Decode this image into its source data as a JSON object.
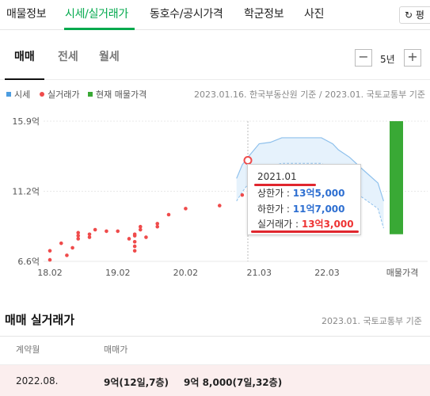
{
  "topnav": {
    "tabs": [
      "매물정보",
      "시세/실거래가",
      "동호수/공시가격",
      "학군정보",
      "사진"
    ],
    "active_index": 1,
    "refresh_label": "평"
  },
  "subtabs": {
    "items": [
      "매매",
      "전세",
      "월세"
    ],
    "active_index": 0
  },
  "period": {
    "minus": "−",
    "label": "5년",
    "plus": "+"
  },
  "legend": [
    {
      "label": "시세",
      "color": "#4d9de0"
    },
    {
      "label": "실거래가",
      "color": "#ef4b4b"
    },
    {
      "label": "현재 매물가격",
      "color": "#39a935"
    }
  ],
  "source_note": "2023.01.16. 한국부동산원 기준 / 2023.01. 국토교통부 기준",
  "chart_data": {
    "type": "line",
    "y_unit": "억",
    "yticks": [
      "15.9억",
      "11.2억",
      "6.6억"
    ],
    "ylim": [
      6.6,
      15.9
    ],
    "xticks": [
      "18.02",
      "19.02",
      "20.02",
      "21.03",
      "22.03",
      "매물가격"
    ],
    "colors": {
      "market_line": "#8ec0ec",
      "market_fill": "#e6f2fc",
      "transaction": "#ef4b4b",
      "listing": "#39a935",
      "grid": "#e8e8e8"
    },
    "market_band": {
      "dates": [
        "2020.11",
        "2020.12",
        "2021.01",
        "2021.03",
        "2021.05",
        "2021.07",
        "2021.09",
        "2021.12",
        "2022.02",
        "2022.04",
        "2022.05",
        "2022.07",
        "2022.09",
        "2022.12",
        "2023.01"
      ],
      "upper": [
        12.1,
        13.0,
        13.5,
        14.4,
        14.5,
        14.8,
        14.8,
        14.8,
        14.8,
        14.4,
        14.0,
        13.5,
        12.8,
        11.8,
        10.6
      ],
      "lower": [
        10.6,
        11.2,
        11.7,
        12.7,
        12.9,
        13.1,
        13.1,
        13.1,
        13.1,
        12.7,
        12.3,
        11.7,
        10.9,
        10.1,
        8.8
      ]
    },
    "transactions": [
      {
        "date": "2018.02",
        "price": 7.3
      },
      {
        "date": "2018.02",
        "price": 6.7
      },
      {
        "date": "2018.04",
        "price": 7.8
      },
      {
        "date": "2018.05",
        "price": 7.0
      },
      {
        "date": "2018.06",
        "price": 7.5
      },
      {
        "date": "2018.07",
        "price": 8.1
      },
      {
        "date": "2018.07",
        "price": 8.5
      },
      {
        "date": "2018.07",
        "price": 8.3
      },
      {
        "date": "2018.09",
        "price": 8.4
      },
      {
        "date": "2018.09",
        "price": 8.2
      },
      {
        "date": "2018.10",
        "price": 8.7
      },
      {
        "date": "2018.12",
        "price": 8.6
      },
      {
        "date": "2019.02",
        "price": 8.6
      },
      {
        "date": "2019.04",
        "price": 8.1
      },
      {
        "date": "2019.05",
        "price": 8.4
      },
      {
        "date": "2019.05",
        "price": 8.3
      },
      {
        "date": "2019.05",
        "price": 7.9
      },
      {
        "date": "2019.05",
        "price": 7.6
      },
      {
        "date": "2019.05",
        "price": 7.3
      },
      {
        "date": "2019.06",
        "price": 8.9
      },
      {
        "date": "2019.06",
        "price": 8.7
      },
      {
        "date": "2019.07",
        "price": 8.2
      },
      {
        "date": "2019.09",
        "price": 8.9
      },
      {
        "date": "2019.09",
        "price": 9.1
      },
      {
        "date": "2019.11",
        "price": 9.7
      },
      {
        "date": "2020.02",
        "price": 10.1
      },
      {
        "date": "2020.08",
        "price": 10.3
      },
      {
        "date": "2020.12",
        "price": 11.0
      },
      {
        "date": "2021.01",
        "price": 13.3
      }
    ],
    "listing_range": {
      "min": 8.4,
      "max": 15.9
    },
    "focus_date": "2021.01"
  },
  "tooltip": {
    "date": "2021.01",
    "upper_label": "상한가 : ",
    "upper_value": "13억5,000",
    "lower_label": "하한가 : ",
    "lower_value": "11억7,000",
    "deal_label": "실거래가 : ",
    "deal_value": "13억3,000"
  },
  "section": {
    "title": "매매 실거래가",
    "source": "2023.01. 국토교통부 기준",
    "headers": [
      "계약월",
      "매매가"
    ],
    "rows": [
      {
        "month": "2022.08.",
        "deal1": "9억(12일,7층)",
        "deal2": "9억 8,000(7일,32층)"
      }
    ]
  }
}
